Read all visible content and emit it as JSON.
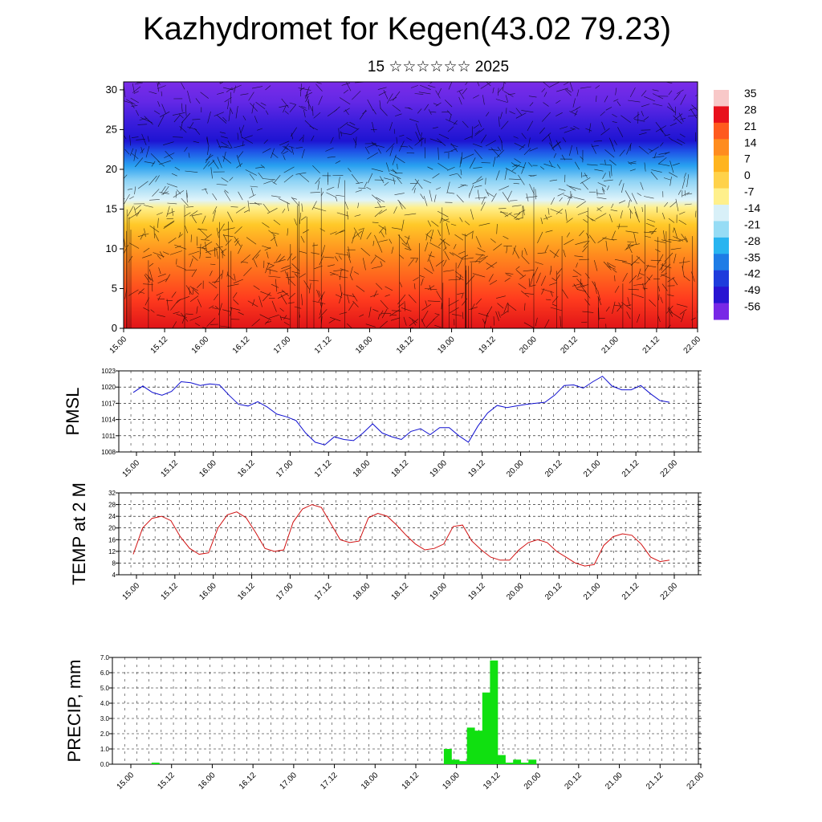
{
  "header": {
    "title": "Kazhydromet for Kegen(43.02 79.23)",
    "subtitle": "15 ☆☆☆☆☆☆ 2025"
  },
  "chart_data": [
    {
      "type": "heatmap",
      "name": "temperature-wind-section",
      "ylim": [
        0,
        31
      ],
      "yticks": [
        0,
        5,
        10,
        15,
        20,
        25,
        30
      ],
      "xticks": [
        "15.00",
        "15.12",
        "16.00",
        "16.12",
        "17.00",
        "17.12",
        "18.00",
        "18.12",
        "19.00",
        "19.12",
        "20.00",
        "20.12",
        "21.00",
        "21.12",
        "22.00"
      ],
      "colorbar": {
        "labels": [
          "35",
          "28",
          "21",
          "14",
          "7",
          "0",
          "-7",
          "-14",
          "-21",
          "-28",
          "-35",
          "-42",
          "-49",
          "-56"
        ],
        "colors": [
          "#f8c8c8",
          "#e8101c",
          "#ff5a1e",
          "#ff8c1e",
          "#ffb41e",
          "#ffd24a",
          "#fff08c",
          "#d8f0f8",
          "#96dcf5",
          "#28b4f0",
          "#1e7ce6",
          "#1e3cdc",
          "#2814d2",
          "#7828e6"
        ]
      },
      "description_free": true
    },
    {
      "type": "line",
      "name": "pmsl",
      "ylabel": "PMSL",
      "ylim": [
        1008,
        1023
      ],
      "yticks": [
        1008,
        1011,
        1014,
        1017,
        1020,
        1023
      ],
      "xticks": [
        "15.00",
        "15.12",
        "16.00",
        "16.12",
        "17.00",
        "17.12",
        "18.00",
        "18.12",
        "19.00",
        "19.12",
        "20.00",
        "20.12",
        "21.00",
        "21.12",
        "22.00"
      ],
      "color": "#1010d0",
      "values": [
        1019.0,
        1020.2,
        1019.0,
        1018.5,
        1019.2,
        1021.0,
        1020.8,
        1020.3,
        1020.6,
        1020.4,
        1018.5,
        1016.8,
        1016.5,
        1017.3,
        1016.3,
        1015.0,
        1014.5,
        1013.8,
        1011.5,
        1009.8,
        1009.3,
        1010.8,
        1010.3,
        1010.1,
        1011.5,
        1013.2,
        1011.5,
        1010.8,
        1010.3,
        1011.8,
        1012.3,
        1011.2,
        1012.5,
        1012.5,
        1011.0,
        1009.8,
        1012.8,
        1015.2,
        1016.6,
        1016.2,
        1016.5,
        1016.8,
        1017.0,
        1017.2,
        1018.5,
        1020.3,
        1020.4,
        1019.8,
        1021.0,
        1022.0,
        1020.2,
        1019.5,
        1019.5,
        1020.3,
        1018.8,
        1017.5,
        1017.2
      ]
    },
    {
      "type": "line",
      "name": "temp2m",
      "ylabel": "TEMP at 2 M",
      "ylim": [
        4,
        32
      ],
      "yticks": [
        4,
        8,
        12,
        16,
        20,
        24,
        28,
        32
      ],
      "xticks": [
        "15.00",
        "15.12",
        "16.00",
        "16.12",
        "17.00",
        "17.12",
        "18.00",
        "18.12",
        "19.00",
        "19.12",
        "20.00",
        "20.12",
        "21.00",
        "21.12",
        "22.00"
      ],
      "color": "#d01010",
      "values": [
        11,
        20,
        23.3,
        24,
        22.5,
        17,
        13,
        11,
        11.5,
        20,
        24.5,
        25.5,
        23.5,
        18.5,
        13,
        12,
        12.5,
        22,
        26.5,
        28,
        27,
        21.5,
        16,
        15,
        15.5,
        23.5,
        25,
        24,
        21,
        17.5,
        14.5,
        12.5,
        13,
        14.5,
        20.5,
        21,
        15.5,
        12.5,
        10,
        9,
        9,
        12.5,
        15,
        16,
        15,
        12,
        10,
        8,
        7,
        7.5,
        14,
        17,
        18,
        17.5,
        14.5,
        10,
        8.5,
        9
      ]
    },
    {
      "type": "bar",
      "name": "precip",
      "ylabel": "PRECIP, mm",
      "ylim": [
        0,
        7
      ],
      "yticks": [
        "0.0",
        "1.0",
        "2.0",
        "3.0",
        "4.0",
        "5.0",
        "6.0",
        "7.0"
      ],
      "xticks": [
        "15.00",
        "15.12",
        "16.00",
        "16.12",
        "17.00",
        "17.12",
        "18.00",
        "18.12",
        "19.00",
        "19.12",
        "20.00",
        "20.12",
        "21.00",
        "21.12",
        "22.00"
      ],
      "color": "#10e010",
      "values": [
        0,
        0,
        0,
        0.1,
        0,
        0,
        0,
        0,
        0,
        0,
        0,
        0,
        0,
        0,
        0,
        0,
        0,
        0,
        0,
        0,
        0,
        0,
        0,
        0,
        0,
        0,
        0,
        0,
        0,
        0,
        0,
        0,
        0,
        0,
        0,
        0,
        0,
        0,
        0,
        0,
        0,
        1.0,
        0.3,
        0.2,
        2.4,
        2.2,
        4.7,
        6.8,
        0.6,
        0.1,
        0.3,
        0.1,
        0.3,
        0,
        0,
        0,
        0,
        0,
        0,
        0,
        0,
        0,
        0,
        0,
        0,
        0,
        0,
        0,
        0,
        0,
        0,
        0
      ]
    }
  ]
}
